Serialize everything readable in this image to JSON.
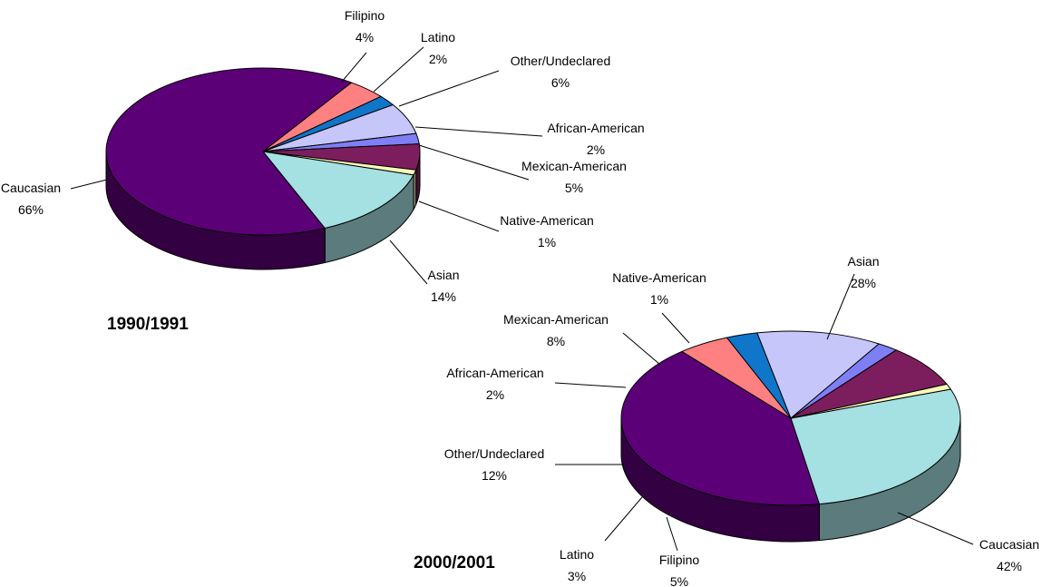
{
  "chart_data": [
    {
      "type": "pie",
      "title": "1990/1991",
      "slices": [
        {
          "label": "Caucasian",
          "value": 66,
          "value_label": "66%",
          "color": "#5C0077"
        },
        {
          "label": "Filipino",
          "value": 4,
          "value_label": "4%",
          "color": "#FF8080"
        },
        {
          "label": "Latino",
          "value": 2,
          "value_label": "2%",
          "color": "#0F76C9"
        },
        {
          "label": "Other/Undeclared",
          "value": 6,
          "value_label": "6%",
          "color": "#C6C6FA"
        },
        {
          "label": "African-American",
          "value": 2,
          "value_label": "2%",
          "color": "#7F7FF5"
        },
        {
          "label": "Mexican-American",
          "value": 5,
          "value_label": "5%",
          "color": "#7C1E5E"
        },
        {
          "label": "Native-American",
          "value": 1,
          "value_label": "1%",
          "color": "#FAF7BA"
        },
        {
          "label": "Asian",
          "value": 14,
          "value_label": "14%",
          "color": "#A5E0E2"
        }
      ]
    },
    {
      "type": "pie",
      "title": "2000/2001",
      "slices": [
        {
          "label": "Asian",
          "value": 28,
          "value_label": "28%",
          "color": "#A5E0E2"
        },
        {
          "label": "Caucasian",
          "value": 42,
          "value_label": "42%",
          "color": "#5C0077"
        },
        {
          "label": "Filipino",
          "value": 5,
          "value_label": "5%",
          "color": "#FF8080"
        },
        {
          "label": "Latino",
          "value": 3,
          "value_label": "3%",
          "color": "#0F76C9"
        },
        {
          "label": "Other/Undeclared",
          "value": 12,
          "value_label": "12%",
          "color": "#C6C6FA"
        },
        {
          "label": "African-American",
          "value": 2,
          "value_label": "2%",
          "color": "#7F7FF5"
        },
        {
          "label": "Mexican-American",
          "value": 8,
          "value_label": "8%",
          "color": "#7C1E5E"
        },
        {
          "label": "Native-American",
          "value": 1,
          "value_label": "1%",
          "color": "#FAF7BA"
        }
      ]
    }
  ]
}
